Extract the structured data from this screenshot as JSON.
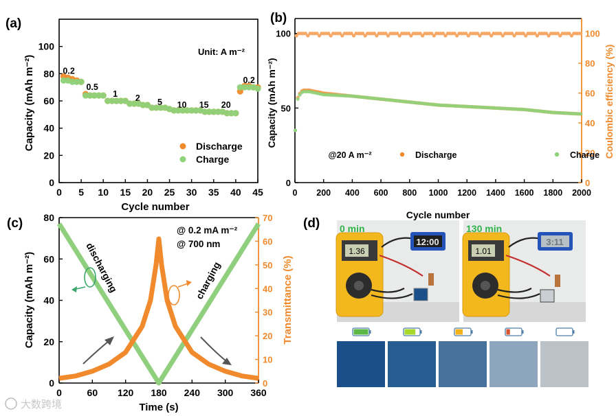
{
  "colors": {
    "discharge": "#f08a2c",
    "charge": "#8ed27a",
    "ce": "#f6a867",
    "green_line": "#8fcf7e",
    "orange_line": "#f08a2c",
    "axis_orange": "#f08a2c",
    "photo_bg": "#e9eaea"
  },
  "watermark": "大数跨境",
  "chart_data": [
    {
      "id": "a",
      "panel_label": "(a)",
      "type": "scatter",
      "xlabel": "Cycle number",
      "ylabel": "Capacity (mAh m⁻²)",
      "xlim": [
        0,
        45
      ],
      "ylim": [
        0,
        120
      ],
      "xticks": [
        "0",
        "5",
        "10",
        "15",
        "20",
        "25",
        "30",
        "35",
        "40",
        "45"
      ],
      "yticks": [
        "0",
        "20",
        "40",
        "60",
        "80",
        "100"
      ],
      "unit_note": "Unit: A m⁻²",
      "legend": [
        "Discharge",
        "Charge"
      ],
      "rate_labels": [
        {
          "text": "0.2",
          "x": 2.2,
          "y": 80
        },
        {
          "text": "0.5",
          "x": 7.5,
          "y": 68
        },
        {
          "text": "1",
          "x": 12.7,
          "y": 63
        },
        {
          "text": "2",
          "x": 17.8,
          "y": 60
        },
        {
          "text": "5",
          "x": 22.8,
          "y": 57
        },
        {
          "text": "10",
          "x": 27.8,
          "y": 55
        },
        {
          "text": "15",
          "x": 32.8,
          "y": 55
        },
        {
          "text": "20",
          "x": 37.8,
          "y": 55
        },
        {
          "text": "0.2",
          "x": 43,
          "y": 73
        }
      ],
      "series": [
        {
          "name": "Discharge",
          "x": [
            1,
            2,
            3,
            4,
            5,
            6,
            7,
            8,
            9,
            10,
            11,
            12,
            13,
            14,
            15,
            16,
            17,
            18,
            19,
            20,
            21,
            22,
            23,
            24,
            25,
            26,
            27,
            28,
            29,
            30,
            31,
            32,
            33,
            34,
            35,
            36,
            37,
            38,
            39,
            40,
            41,
            42,
            43,
            44,
            45
          ],
          "values": [
            78,
            77,
            76,
            75,
            74,
            65,
            64,
            64,
            64,
            64,
            60,
            60,
            60,
            60,
            60,
            58,
            58,
            58,
            57,
            57,
            55,
            55,
            55,
            55,
            54,
            53,
            53,
            53,
            53,
            53,
            53,
            53,
            52,
            52,
            52,
            52,
            52,
            51,
            51,
            51,
            67,
            71,
            71,
            70,
            70
          ]
        },
        {
          "name": "Charge",
          "x": [
            1,
            2,
            3,
            4,
            5,
            6,
            7,
            8,
            9,
            10,
            11,
            12,
            13,
            14,
            15,
            16,
            17,
            18,
            19,
            20,
            21,
            22,
            23,
            24,
            25,
            26,
            27,
            28,
            29,
            30,
            31,
            32,
            33,
            34,
            35,
            36,
            37,
            38,
            39,
            40,
            41,
            42,
            43,
            44,
            45
          ],
          "values": [
            75,
            75,
            74,
            74,
            74,
            64,
            64,
            64,
            64,
            64,
            60,
            60,
            60,
            60,
            60,
            58,
            58,
            58,
            57,
            57,
            55,
            55,
            55,
            55,
            54,
            53,
            53,
            53,
            53,
            53,
            53,
            53,
            52,
            52,
            52,
            52,
            52,
            51,
            51,
            51,
            70,
            70,
            70,
            70,
            69
          ]
        }
      ]
    },
    {
      "id": "b",
      "panel_label": "(b)",
      "type": "scatter",
      "xlabel": "Cycle number",
      "ylabel": "Capacity (mAh m⁻²)",
      "y2label": "Coulombic efficiency (%)",
      "xlim": [
        0,
        2000
      ],
      "ylim": [
        0,
        110
      ],
      "y2lim": [
        0,
        110
      ],
      "xticks": [
        "0",
        "200",
        "400",
        "600",
        "800",
        "1000",
        "1200",
        "1400",
        "1600",
        "1800",
        "2000"
      ],
      "yticks": [
        "0",
        "50",
        "100"
      ],
      "y2ticks": [
        "0",
        "20",
        "40",
        "60",
        "80",
        "100"
      ],
      "legend_prefix": "@20 A m⁻²",
      "legend": [
        "Discharge",
        "Charge"
      ],
      "series": [
        {
          "name": "Discharge",
          "x": [
            0,
            20,
            40,
            60,
            80,
            100,
            200,
            400,
            600,
            800,
            1000,
            1200,
            1400,
            1600,
            1800,
            2000
          ],
          "values": [
            35,
            57,
            61,
            62,
            62,
            62,
            60,
            58,
            56,
            54,
            52,
            51,
            50,
            49,
            47,
            46
          ]
        },
        {
          "name": "Charge",
          "x": [
            0,
            20,
            40,
            60,
            80,
            100,
            200,
            400,
            600,
            800,
            1000,
            1200,
            1400,
            1600,
            1800,
            2000
          ],
          "values": [
            35,
            56,
            60,
            61,
            61,
            61,
            59,
            58,
            56,
            54,
            52,
            51,
            50,
            49,
            47,
            46
          ]
        },
        {
          "name": "Coulombic efficiency",
          "x": [
            0,
            2000
          ],
          "values": [
            100,
            100
          ]
        }
      ]
    },
    {
      "id": "c",
      "panel_label": "(c)",
      "type": "line",
      "xlabel": "Time (s)",
      "ylabel": "Capacity (mAh m⁻²)",
      "y2label": "Transmittance (%)",
      "xlim": [
        0,
        360
      ],
      "ylim": [
        0,
        80
      ],
      "y2lim": [
        0,
        70
      ],
      "xticks": [
        "0",
        "60",
        "120",
        "180",
        "240",
        "300",
        "360"
      ],
      "yticks": [
        "0",
        "20",
        "40",
        "60",
        "80"
      ],
      "y2ticks": [
        "0",
        "10",
        "20",
        "30",
        "40",
        "50",
        "60",
        "70"
      ],
      "annotations": [
        "@ 0.2 mA m⁻²",
        "@ 700 nm",
        "discharging",
        "charging"
      ],
      "series": [
        {
          "name": "Capacity",
          "x": [
            0,
            180,
            360
          ],
          "values": [
            77,
            0,
            77
          ]
        },
        {
          "name": "Transmittance",
          "x": [
            0,
            30,
            60,
            90,
            120,
            150,
            165,
            175,
            180,
            185,
            195,
            210,
            240,
            270,
            300,
            330,
            360
          ],
          "values": [
            2,
            3,
            5,
            8,
            13,
            24,
            35,
            50,
            61,
            50,
            35,
            24,
            13,
            8,
            5,
            3,
            2
          ]
        }
      ]
    },
    {
      "id": "d",
      "panel_label": "(d)",
      "type": "table",
      "photo_labels": [
        "0 min",
        "130 min"
      ],
      "meter_readings": [
        "1.36",
        "1.01"
      ],
      "clock_readings": [
        "12:00",
        "3:11"
      ],
      "battery_levels": [
        1.0,
        0.75,
        0.5,
        0.25,
        0.0
      ],
      "sample_colors": [
        "#1b4f8a",
        "#285d92",
        "#47729b",
        "#8ea6bd",
        "#bcc3c8"
      ]
    }
  ]
}
